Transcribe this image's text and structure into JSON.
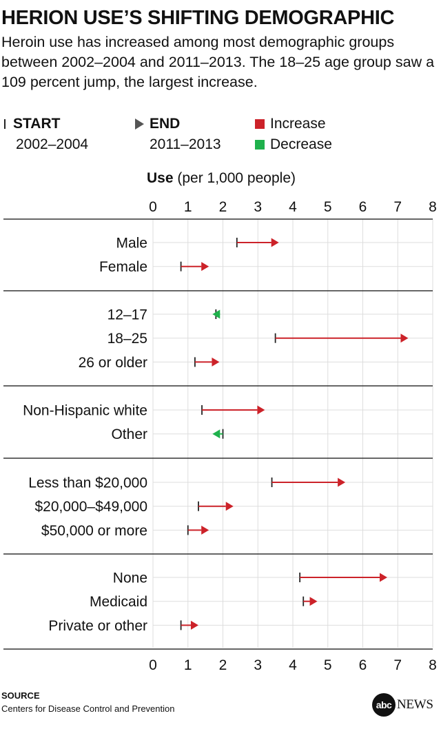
{
  "title": "HERION USE’S SHIFTING DEMOGRAPHIC",
  "subtitle": "Heroin use has increased among most demographic groups between 2002–2004 and 2011–2013. The 18–25 age group saw a 109 percent jump, the largest increase.",
  "legend": {
    "start_label": "START",
    "start_period": "2002–2004",
    "end_label": "END",
    "end_period": "2011–2013",
    "increase_label": "Increase",
    "decrease_label": "Decrease"
  },
  "colors": {
    "increase": "#cc2229",
    "decrease": "#1fb14c",
    "end_marker_legend": "#555555",
    "gridline": "#dddddd",
    "divider": "#333333"
  },
  "axis": {
    "title_bold": "Use",
    "title_rest": " (per 1,000 people)"
  },
  "source": {
    "heading": "SOURCE",
    "text": "Centers for Disease Control and Prevention"
  },
  "logo": {
    "circle_text": "abc",
    "word": "NEWS"
  },
  "chart_data": {
    "type": "dumbbell-arrow",
    "xlabel": "Use (per 1,000 people)",
    "xlim": [
      0,
      8
    ],
    "xticks": [
      0,
      1,
      2,
      3,
      4,
      5,
      6,
      7,
      8
    ],
    "grid": true,
    "groups": [
      {
        "rows": [
          {
            "label": "Male",
            "start": 2.4,
            "end": 3.6
          },
          {
            "label": "Female",
            "start": 0.8,
            "end": 1.6
          }
        ]
      },
      {
        "rows": [
          {
            "label": "12–17",
            "start": 1.8,
            "end": 1.7
          },
          {
            "label": "18–25",
            "start": 3.5,
            "end": 7.3
          },
          {
            "label": "26 or older",
            "start": 1.2,
            "end": 1.9
          }
        ]
      },
      {
        "rows": [
          {
            "label": "Non-Hispanic white",
            "start": 1.4,
            "end": 3.2
          },
          {
            "label": "Other",
            "start": 2.0,
            "end": 1.7
          }
        ]
      },
      {
        "rows": [
          {
            "label": "Less than $20,000",
            "start": 3.4,
            "end": 5.5
          },
          {
            "label": "$20,000–$49,000",
            "start": 1.3,
            "end": 2.3
          },
          {
            "label": "$50,000 or more",
            "start": 1.0,
            "end": 1.6
          }
        ]
      },
      {
        "rows": [
          {
            "label": "None",
            "start": 4.2,
            "end": 6.7
          },
          {
            "label": "Medicaid",
            "start": 4.3,
            "end": 4.7
          },
          {
            "label": "Private or other",
            "start": 0.8,
            "end": 1.3
          }
        ]
      }
    ]
  }
}
